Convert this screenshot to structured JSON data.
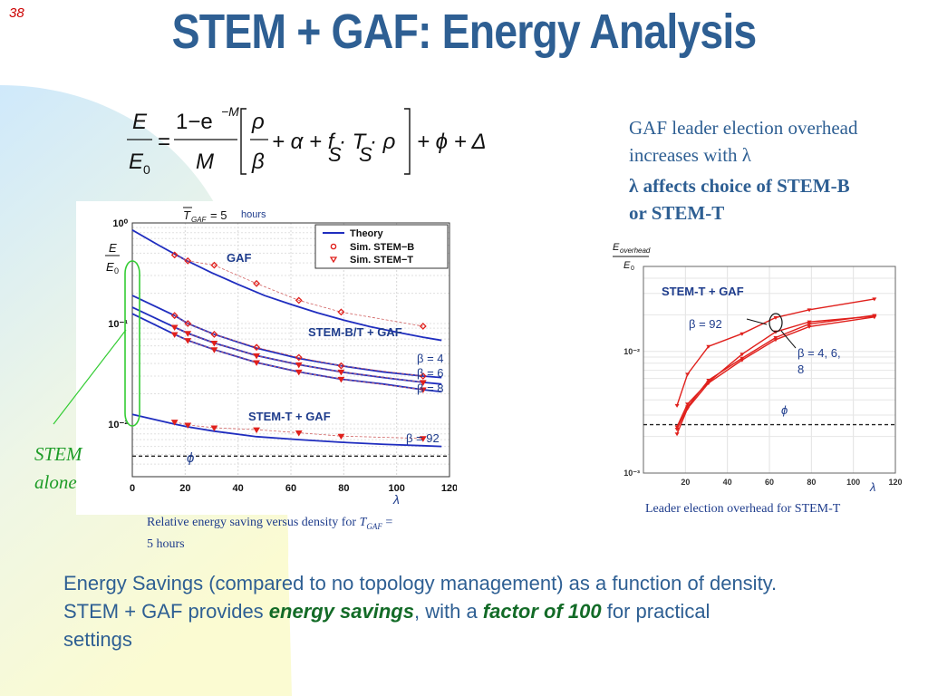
{
  "slide_number": "38",
  "title": "STEM + GAF: Energy Analysis",
  "formula": {
    "lhs_num": "E",
    "lhs_den": "E",
    "lhs_den_sub": "0",
    "frac_num": "1−e",
    "frac_num_sup": "−M",
    "frac_den": "M",
    "inner_num": "ρ",
    "inner_den": "β",
    "inner_terms": "+ α + f",
    "sub_S": "S",
    "T": " · T",
    "rho_end": " · ρ",
    "tail": "+ ϕ + Δ"
  },
  "right_text": {
    "line1": "GAF leader election overhead",
    "line2": "increases with λ",
    "bold1": "λ affects choice of STEM-B",
    "bold2": "or STEM-T"
  },
  "left_chart_caption": {
    "line1_a": "Relative energy saving versus density for ",
    "line1_T": "T",
    "line1_sub": "GAF",
    "line1_b": " =",
    "line2": "5 hours"
  },
  "right_chart_caption": "Leader election overhead for STEM-T",
  "stem_alone": [
    "STEM",
    "alone"
  ],
  "bottom": {
    "line1": "Energy Savings (compared to no topology management) as a function of density.",
    "line2_a": "STEM + GAF provides ",
    "line2_emph1": "energy savings",
    "line2_b": ", with a ",
    "line2_emph2": "factor of 100",
    "line2_c": " for practical",
    "line3": "settings"
  },
  "colors": {
    "title": "#2e5f93",
    "theory": "#1f2dbf",
    "sim": "#e0201c",
    "annot": "#1e3c8c",
    "green": "#1e9c28"
  },
  "chart_data": [
    {
      "type": "line",
      "y_scale": "log",
      "xlim": [
        0,
        120
      ],
      "ylim": [
        0.003,
        1
      ],
      "x_ticks": [
        "0",
        "20",
        "40",
        "60",
        "80",
        "100",
        "120"
      ],
      "y_ticks": [
        "10⁰",
        "10⁻¹",
        "10⁻²"
      ],
      "ylabel_num": "E",
      "ylabel_den": "E",
      "ylabel_den_sub": "0",
      "xlabel": "λ",
      "top_label": {
        "T": "T",
        "sub": "GAF",
        "eq": " = 5",
        "unit": "hours"
      },
      "legend": [
        "Theory",
        "Sim. STEM−B",
        "Sim. STEM−T"
      ],
      "legend_position": "top-right",
      "grid": true,
      "annotations": {
        "gaf": "GAF",
        "stem_bt": "STEM-B/T + GAF",
        "stem_t": "STEM-T + GAF",
        "b4": "β = 4",
        "b6": "β = 6",
        "b8": "β = 8",
        "b92": "β = 92",
        "phi": "ϕ"
      },
      "phi_level": 0.0048,
      "series": [
        {
          "name": "GAF",
          "style": "theory",
          "x": [
            0,
            10,
            20,
            30,
            40,
            50,
            60,
            70,
            80,
            90,
            100,
            110,
            117
          ],
          "y": [
            0.85,
            0.6,
            0.43,
            0.32,
            0.245,
            0.19,
            0.155,
            0.128,
            0.108,
            0.093,
            0.082,
            0.073,
            0.068
          ]
        },
        {
          "name": "GAF sim",
          "style": "sim-b",
          "x": [
            16,
            21,
            31,
            47,
            63,
            79,
            110
          ],
          "y": [
            0.48,
            0.42,
            0.38,
            0.25,
            0.17,
            0.13,
            0.094
          ]
        },
        {
          "name": "β = 4",
          "style": "theory",
          "x": [
            0,
            16,
            21,
            31,
            47,
            63,
            79,
            95,
            110,
            117
          ],
          "y": [
            0.19,
            0.12,
            0.1,
            0.078,
            0.057,
            0.045,
            0.038,
            0.033,
            0.03,
            0.029
          ]
        },
        {
          "name": "β = 6",
          "style": "theory",
          "x": [
            0,
            16,
            21,
            31,
            47,
            63,
            79,
            95,
            110,
            117
          ],
          "y": [
            0.145,
            0.092,
            0.08,
            0.064,
            0.048,
            0.039,
            0.033,
            0.029,
            0.026,
            0.025
          ]
        },
        {
          "name": "β = 8",
          "style": "theory",
          "x": [
            0,
            16,
            21,
            31,
            47,
            63,
            79,
            95,
            110,
            117
          ],
          "y": [
            0.125,
            0.078,
            0.068,
            0.055,
            0.041,
            0.033,
            0.028,
            0.025,
            0.022,
            0.021
          ]
        },
        {
          "name": "STEM-B sims",
          "style": "sim-b",
          "x": [
            16,
            21,
            31,
            47,
            63,
            79,
            110
          ],
          "y": [
            0.12,
            0.1,
            0.078,
            0.058,
            0.046,
            0.038,
            0.03
          ]
        },
        {
          "name": "STEM-T sims",
          "style": "sim-t",
          "x": [
            16,
            21,
            31,
            47,
            63,
            79,
            110
          ],
          "y": [
            0.092,
            0.08,
            0.064,
            0.048,
            0.039,
            0.033,
            0.026
          ]
        },
        {
          "name": "STEM-T sims 2",
          "style": "sim-t",
          "x": [
            16,
            21,
            31,
            47,
            63,
            79,
            110
          ],
          "y": [
            0.078,
            0.068,
            0.055,
            0.041,
            0.033,
            0.028,
            0.022
          ]
        },
        {
          "name": "β = 92",
          "style": "theory",
          "x": [
            0,
            16,
            21,
            31,
            47,
            63,
            79,
            95,
            110,
            117
          ],
          "y": [
            0.0125,
            0.01,
            0.0094,
            0.0085,
            0.0075,
            0.007,
            0.0066,
            0.0063,
            0.0061,
            0.006
          ]
        },
        {
          "name": "β = 92 sims",
          "style": "sim-t",
          "x": [
            16,
            21,
            31,
            47,
            63,
            79,
            110
          ],
          "y": [
            0.0105,
            0.0098,
            0.0092,
            0.0088,
            0.0082,
            0.0076,
            0.0072
          ]
        }
      ]
    },
    {
      "type": "line",
      "y_scale": "log",
      "xlim": [
        0,
        120
      ],
      "ylim": [
        0.001,
        0.05
      ],
      "x_ticks": [
        "20",
        "40",
        "60",
        "80",
        "100",
        "120"
      ],
      "y_ticks": [
        "10⁻²",
        "10⁻³"
      ],
      "ylabel_num": "E",
      "ylabel_num_sub": "overhead",
      "ylabel_den": "E",
      "ylabel_den_sub": "0",
      "xlabel": "λ",
      "grid": true,
      "annotations": {
        "title": "STEM-T + GAF",
        "b92": "β = 92",
        "b468": [
          "β = 4, 6,",
          "8"
        ],
        "phi": "ϕ"
      },
      "phi_level": 0.0025,
      "series": [
        {
          "name": "β = 92",
          "x": [
            16,
            21,
            31,
            47,
            63,
            79,
            110
          ],
          "y": [
            0.0036,
            0.0065,
            0.011,
            0.014,
            0.019,
            0.022,
            0.027
          ]
        },
        {
          "name": "β = 4",
          "x": [
            16,
            21,
            31,
            47,
            63,
            79,
            110
          ],
          "y": [
            0.0024,
            0.0037,
            0.0056,
            0.0095,
            0.0145,
            0.0175,
            0.0195
          ]
        },
        {
          "name": "β = 6",
          "x": [
            16,
            21,
            31,
            47,
            63,
            79,
            110
          ],
          "y": [
            0.0023,
            0.0035,
            0.0058,
            0.0088,
            0.013,
            0.0168,
            0.0198
          ]
        },
        {
          "name": "β = 8",
          "x": [
            16,
            21,
            31,
            47,
            63,
            79,
            110
          ],
          "y": [
            0.0021,
            0.0034,
            0.0055,
            0.0085,
            0.0125,
            0.016,
            0.0192
          ]
        }
      ]
    }
  ]
}
